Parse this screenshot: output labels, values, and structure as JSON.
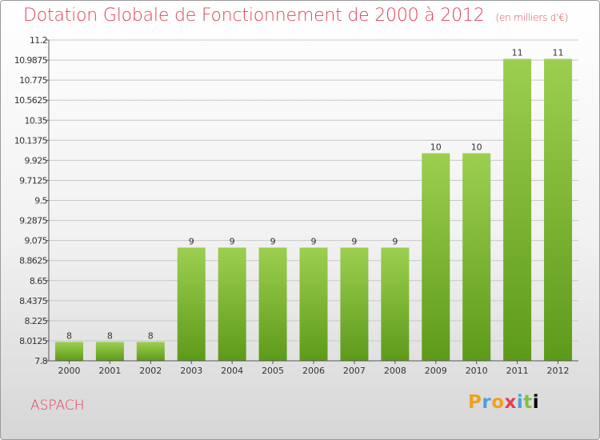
{
  "title": "Dotation Globale de Fonctionnement de 2000 à 2012",
  "subtitle": "(en milliers d'€)",
  "commune": "ASPACH",
  "logo": "Proxiti",
  "colors": {
    "bar_top": "#9ccf4f",
    "bar_bottom": "#5e9a1a",
    "title": "#e0405a",
    "grid": "#c8c8c8"
  },
  "chart_data": {
    "type": "bar",
    "categories": [
      "2000",
      "2001",
      "2002",
      "2003",
      "2004",
      "2005",
      "2006",
      "2007",
      "2008",
      "2009",
      "2010",
      "2011",
      "2012"
    ],
    "values": [
      8,
      8,
      8,
      9,
      9,
      9,
      9,
      9,
      9,
      10,
      10,
      11,
      11
    ],
    "data_labels": [
      "8",
      "8",
      "8",
      "9",
      "9",
      "9",
      "9",
      "9",
      "9",
      "10",
      "10",
      "11",
      "11"
    ],
    "bar_heights_axis_units": [
      8.0,
      8.0,
      8.0,
      9.0,
      9.0,
      9.0,
      9.0,
      9.0,
      9.0,
      10.0,
      10.0,
      11.0,
      11.0
    ],
    "yticks": [
      "7.8",
      "8.0125",
      "8.225",
      "8.4375",
      "8.65",
      "8.8625",
      "9.075",
      "9.2875",
      "9.5",
      "9.7125",
      "9.925",
      "10.1375",
      "10.35",
      "10.5625",
      "10.775",
      "10.9875",
      "11.2"
    ],
    "ylim": [
      7.8,
      11.2
    ],
    "grid": true,
    "xlabel": "",
    "ylabel": ""
  }
}
